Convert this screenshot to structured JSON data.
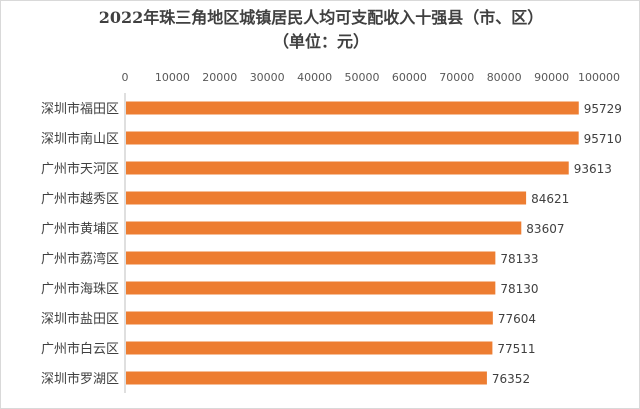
{
  "chart_data": {
    "type": "bar",
    "orientation": "horizontal",
    "title": "2022年珠三角地区城镇居民人均可支配收入十强县（市、区）",
    "subtitle": "（单位：元）",
    "xlabel": "",
    "ylabel": "",
    "xlim": [
      0,
      100000
    ],
    "x_ticks": [
      "0",
      "10000",
      "20000",
      "30000",
      "40000",
      "50000",
      "60000",
      "70000",
      "80000",
      "90000",
      "100000"
    ],
    "x_axis_position": "top",
    "grid": false,
    "legend": "none",
    "bar_color": "#ed7d31",
    "categories": [
      "深圳市福田区",
      "深圳市南山区",
      "广州市天河区",
      "广州市越秀区",
      "广州市黄埔区",
      "广州市荔湾区",
      "广州市海珠区",
      "深圳市盐田区",
      "广州市白云区",
      "深圳市罗湖区"
    ],
    "values": [
      95729,
      95710,
      93613,
      84621,
      83607,
      78133,
      78130,
      77604,
      77511,
      76352
    ]
  }
}
